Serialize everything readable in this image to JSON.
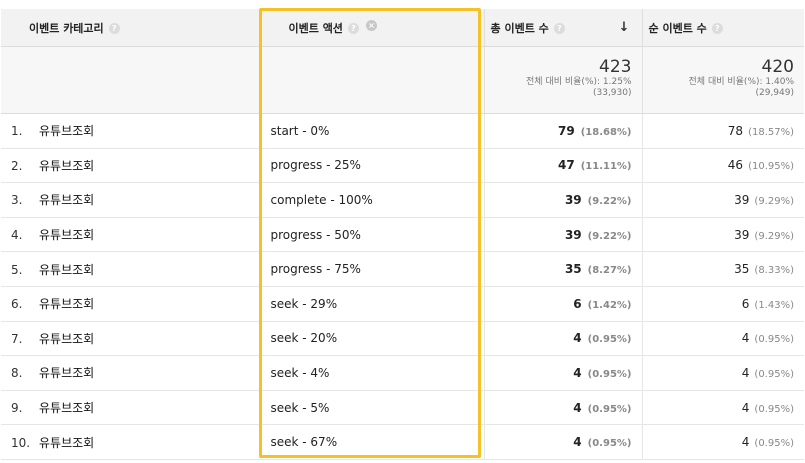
{
  "headers": {
    "category": "이벤트 카테고리",
    "action": "이벤트 액션",
    "total_events": "총 이벤트 수",
    "unique_events": "순 이벤트 수"
  },
  "summary": {
    "total": {
      "value": "423",
      "line1": "전체 대비 비율(%): 1.25%",
      "line2": "(33,930)"
    },
    "unique": {
      "value": "420",
      "line1": "전체 대비 비율(%): 1.40%",
      "line2": "(29,949)"
    }
  },
  "rows": [
    {
      "rank": "1.",
      "category": "유튜브조회",
      "action": "start - 0%",
      "total": "79",
      "total_pct": "(18.68%)",
      "unique": "78",
      "unique_pct": "(18.57%)"
    },
    {
      "rank": "2.",
      "category": "유튜브조회",
      "action": "progress - 25%",
      "total": "47",
      "total_pct": "(11.11%)",
      "unique": "46",
      "unique_pct": "(10.95%)"
    },
    {
      "rank": "3.",
      "category": "유튜브조회",
      "action": "complete - 100%",
      "total": "39",
      "total_pct": "(9.22%)",
      "unique": "39",
      "unique_pct": "(9.29%)"
    },
    {
      "rank": "4.",
      "category": "유튜브조회",
      "action": "progress - 50%",
      "total": "39",
      "total_pct": "(9.22%)",
      "unique": "39",
      "unique_pct": "(9.29%)"
    },
    {
      "rank": "5.",
      "category": "유튜브조회",
      "action": "progress - 75%",
      "total": "35",
      "total_pct": "(8.27%)",
      "unique": "35",
      "unique_pct": "(8.33%)"
    },
    {
      "rank": "6.",
      "category": "유튜브조회",
      "action": "seek - 29%",
      "total": "6",
      "total_pct": "(1.42%)",
      "unique": "6",
      "unique_pct": "(1.43%)"
    },
    {
      "rank": "7.",
      "category": "유튜브조회",
      "action": "seek - 20%",
      "total": "4",
      "total_pct": "(0.95%)",
      "unique": "4",
      "unique_pct": "(0.95%)"
    },
    {
      "rank": "8.",
      "category": "유튜브조회",
      "action": "seek - 4%",
      "total": "4",
      "total_pct": "(0.95%)",
      "unique": "4",
      "unique_pct": "(0.95%)"
    },
    {
      "rank": "9.",
      "category": "유튜브조회",
      "action": "seek - 5%",
      "total": "4",
      "total_pct": "(0.95%)",
      "unique": "4",
      "unique_pct": "(0.95%)"
    },
    {
      "rank": "10.",
      "category": "유튜브조회",
      "action": "seek - 67%",
      "total": "4",
      "total_pct": "(0.95%)",
      "unique": "4",
      "unique_pct": "(0.95%)"
    }
  ],
  "icons": {
    "help": "?",
    "remove": "×",
    "sort_desc": "↓"
  },
  "colors": {
    "highlight": "#f4c126",
    "header_bg": "#f2f2f2"
  }
}
